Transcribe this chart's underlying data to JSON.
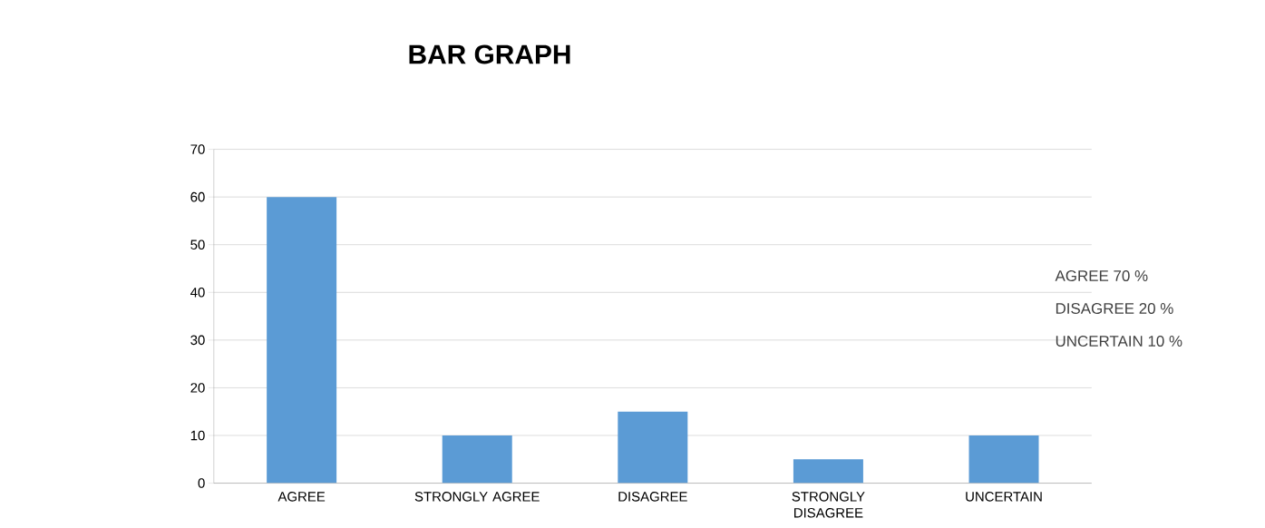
{
  "chart_data": {
    "type": "bar",
    "title": "BAR GRAPH",
    "categories": [
      "AGREE",
      "STRONGLY AGREE",
      "DISAGREE",
      "STRONGLY DISAGREE",
      "UNCERTAIN"
    ],
    "values": [
      60,
      10,
      15,
      5,
      10
    ],
    "color": "#5b9bd5",
    "ylim": [
      0,
      70
    ],
    "yticks": [
      0,
      10,
      20,
      30,
      40,
      50,
      60,
      70
    ],
    "grid": "y",
    "annotations": [
      "AGREE 70 %",
      "DISAGREE 20 %",
      "UNCERTAIN 10 %"
    ]
  }
}
